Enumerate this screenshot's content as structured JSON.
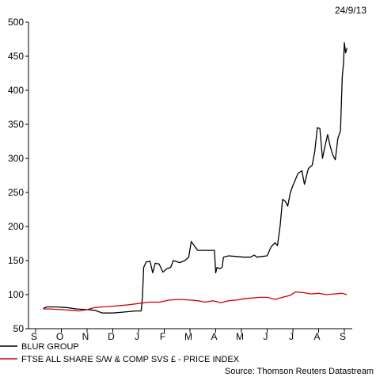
{
  "chart_data": {
    "type": "line",
    "date": "24/9/13",
    "source": "Source: Thomson Reuters Datastream",
    "x_tick_labels": [
      "S",
      "O",
      "N",
      "D",
      "J",
      "F",
      "M",
      "A",
      "M",
      "J",
      "J",
      "A",
      "S"
    ],
    "y_ticks": [
      50,
      100,
      150,
      200,
      250,
      300,
      350,
      400,
      450,
      500
    ],
    "ylim": [
      50,
      500
    ],
    "xlim": [
      0,
      12
    ],
    "grid": false,
    "legend_position": "bottom-left",
    "series": [
      {
        "name": "BLUR GROUP",
        "color": "#000000",
        "points": [
          [
            0.3,
            80
          ],
          [
            0.45,
            82
          ],
          [
            0.8,
            82
          ],
          [
            1.2,
            81
          ],
          [
            1.6,
            79
          ],
          [
            2.0,
            78
          ],
          [
            2.3,
            77
          ],
          [
            2.6,
            73
          ],
          [
            3.0,
            73
          ],
          [
            3.3,
            74
          ],
          [
            3.6,
            75
          ],
          [
            3.9,
            76
          ],
          [
            4.1,
            76
          ],
          [
            4.15,
            95
          ],
          [
            4.2,
            140
          ],
          [
            4.3,
            148
          ],
          [
            4.45,
            149
          ],
          [
            4.55,
            132
          ],
          [
            4.65,
            146
          ],
          [
            4.8,
            145
          ],
          [
            4.95,
            133
          ],
          [
            5.1,
            138
          ],
          [
            5.25,
            140
          ],
          [
            5.35,
            150
          ],
          [
            5.6,
            147
          ],
          [
            5.8,
            150
          ],
          [
            5.95,
            155
          ],
          [
            6.05,
            178
          ],
          [
            6.2,
            170
          ],
          [
            6.3,
            165
          ],
          [
            6.5,
            165
          ],
          [
            6.8,
            165
          ],
          [
            6.95,
            165
          ],
          [
            7.0,
            132
          ],
          [
            7.05,
            140
          ],
          [
            7.15,
            138
          ],
          [
            7.25,
            140
          ],
          [
            7.3,
            155
          ],
          [
            7.5,
            157
          ],
          [
            7.8,
            156
          ],
          [
            8.1,
            155
          ],
          [
            8.35,
            155
          ],
          [
            8.5,
            158
          ],
          [
            8.6,
            155
          ],
          [
            8.8,
            156
          ],
          [
            9.0,
            157
          ],
          [
            9.15,
            170
          ],
          [
            9.3,
            176
          ],
          [
            9.4,
            172
          ],
          [
            9.5,
            200
          ],
          [
            9.6,
            240
          ],
          [
            9.7,
            237
          ],
          [
            9.8,
            230
          ],
          [
            9.9,
            250
          ],
          [
            10.0,
            260
          ],
          [
            10.2,
            278
          ],
          [
            10.35,
            282
          ],
          [
            10.45,
            262
          ],
          [
            10.6,
            285
          ],
          [
            10.75,
            290
          ],
          [
            10.85,
            310
          ],
          [
            10.95,
            345
          ],
          [
            11.05,
            344
          ],
          [
            11.15,
            300
          ],
          [
            11.25,
            318
          ],
          [
            11.35,
            335
          ],
          [
            11.45,
            318
          ],
          [
            11.55,
            305
          ],
          [
            11.65,
            298
          ],
          [
            11.75,
            330
          ],
          [
            11.85,
            340
          ],
          [
            11.92,
            420
          ],
          [
            11.97,
            440
          ],
          [
            12.0,
            470
          ],
          [
            12.05,
            455
          ],
          [
            12.1,
            462
          ]
        ]
      },
      {
        "name": "FTSE ALL SHARE S/W & COMP SVS £ - PRICE INDEX",
        "color": "#cc0000",
        "points": [
          [
            0.3,
            79
          ],
          [
            0.6,
            79
          ],
          [
            1.0,
            78
          ],
          [
            1.4,
            77
          ],
          [
            1.7,
            76
          ],
          [
            2.0,
            78
          ],
          [
            2.3,
            81
          ],
          [
            2.6,
            82
          ],
          [
            3.0,
            83
          ],
          [
            3.3,
            84
          ],
          [
            3.6,
            85
          ],
          [
            4.0,
            87
          ],
          [
            4.4,
            89
          ],
          [
            4.8,
            89
          ],
          [
            5.2,
            92
          ],
          [
            5.6,
            93
          ],
          [
            6.0,
            92
          ],
          [
            6.3,
            91
          ],
          [
            6.6,
            89
          ],
          [
            6.9,
            91
          ],
          [
            7.2,
            88
          ],
          [
            7.5,
            91
          ],
          [
            7.8,
            92
          ],
          [
            8.1,
            94
          ],
          [
            8.4,
            95
          ],
          [
            8.7,
            96
          ],
          [
            9.0,
            96
          ],
          [
            9.3,
            93
          ],
          [
            9.6,
            96
          ],
          [
            9.9,
            99
          ],
          [
            10.1,
            104
          ],
          [
            10.4,
            103
          ],
          [
            10.7,
            101
          ],
          [
            11.0,
            102
          ],
          [
            11.3,
            100
          ],
          [
            11.6,
            101
          ],
          [
            11.9,
            102
          ],
          [
            12.1,
            100
          ]
        ]
      }
    ]
  }
}
